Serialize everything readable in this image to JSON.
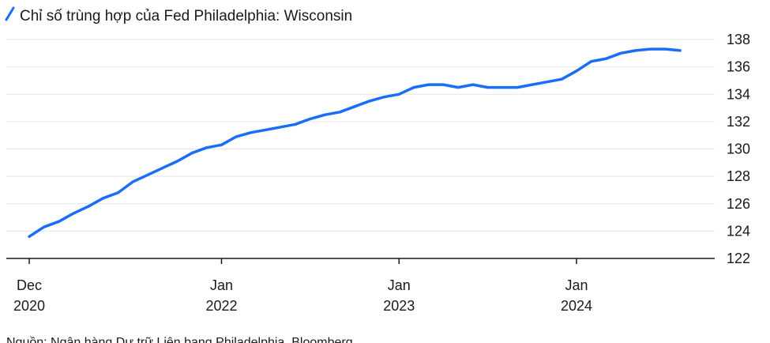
{
  "chart_data": {
    "type": "line",
    "legend": "Chỉ số trùng hợp của Fed Philadelphia: Wisconsin",
    "legend_placement": "top-left",
    "source": "Nguồn: Ngân hàng Dự trữ Liên bang Philadelphia, Bloomberg",
    "ylim": [
      122,
      138
    ],
    "yticks": [
      122,
      124,
      126,
      128,
      130,
      132,
      134,
      136,
      138
    ],
    "y_axis_side": "right",
    "grid": true,
    "color": "#1a6ef5",
    "x_ticks": [
      {
        "date": "2020-12",
        "line1": "Dec",
        "line2": "2020"
      },
      {
        "date": "2022-01",
        "line1": "Jan",
        "line2": "2022"
      },
      {
        "date": "2023-01",
        "line1": "Jan",
        "line2": "2023"
      },
      {
        "date": "2024-01",
        "line1": "Jan",
        "line2": "2024"
      }
    ],
    "series": [
      {
        "x": [
          "2020-12",
          "2021-01",
          "2021-02",
          "2021-03",
          "2021-04",
          "2021-05",
          "2021-06",
          "2021-07",
          "2021-08",
          "2021-09",
          "2021-10",
          "2021-11",
          "2021-12",
          "2022-01",
          "2022-02",
          "2022-03",
          "2022-04",
          "2022-05",
          "2022-06",
          "2022-07",
          "2022-08",
          "2022-09",
          "2022-10",
          "2022-11",
          "2022-12",
          "2023-01",
          "2023-02",
          "2023-03",
          "2023-04",
          "2023-05",
          "2023-06",
          "2023-07",
          "2023-08",
          "2023-09",
          "2023-10",
          "2023-11",
          "2023-12",
          "2024-01",
          "2024-02",
          "2024-03",
          "2024-04",
          "2024-05",
          "2024-06",
          "2024-07",
          "2024-08"
        ],
        "values": [
          123.6,
          124.3,
          124.7,
          125.3,
          125.8,
          126.4,
          126.8,
          127.6,
          128.1,
          128.6,
          129.1,
          129.7,
          130.1,
          130.3,
          130.9,
          131.2,
          131.4,
          131.6,
          131.8,
          132.2,
          132.5,
          132.7,
          133.1,
          133.5,
          133.8,
          134.0,
          134.5,
          134.7,
          134.7,
          134.5,
          134.7,
          134.5,
          134.5,
          134.5,
          134.7,
          134.9,
          135.1,
          135.7,
          136.4,
          136.6,
          137.0,
          137.2,
          137.3,
          137.3,
          137.2
        ]
      }
    ]
  }
}
